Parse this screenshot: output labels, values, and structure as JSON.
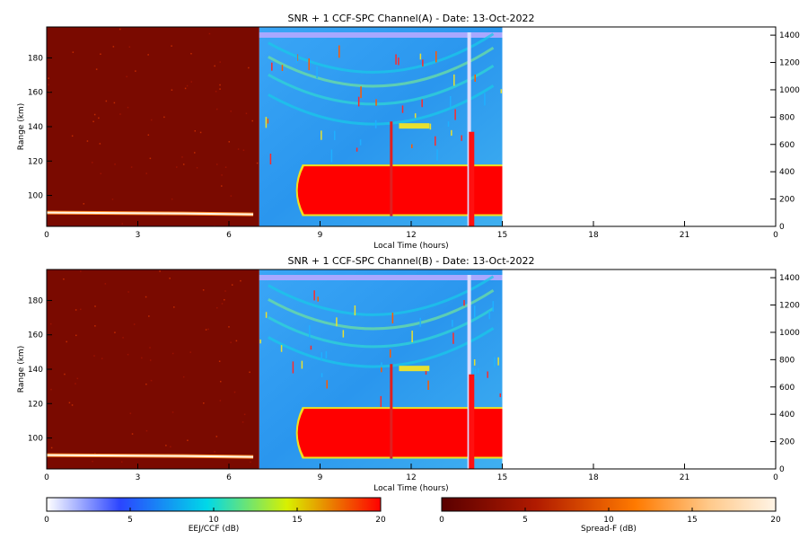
{
  "chart_data": [
    {
      "type": "heatmap",
      "title": "SNR + 1 CCF-SPC Channel(A) - Date: 13-Oct-2022",
      "xlabel": "Local Time (hours)",
      "ylabel": "Range (km)",
      "xlim": [
        0,
        24
      ],
      "ylim": [
        82,
        198
      ],
      "xticks": [
        "0",
        "3",
        "6",
        "9",
        "12",
        "15",
        "18",
        "21",
        "0"
      ],
      "yticks": [
        100,
        120,
        140,
        160,
        180
      ],
      "y2ticks": [
        0,
        200,
        400,
        600,
        800,
        1000,
        1200,
        1400
      ],
      "y2lim": [
        0,
        1460
      ],
      "segments": [
        {
          "name": "Spread-F",
          "x": [
            0,
            7
          ],
          "colorbar": "Spread-F (dB)"
        },
        {
          "name": "EEJ/CCF",
          "x": [
            7,
            15
          ],
          "colorbar": "EEJ/CCF (dB)"
        }
      ],
      "features": {
        "spreadf_trace_range_km": 89,
        "eej_saturated_range_km": [
          88,
          118
        ],
        "noise_fill_x": [
          7,
          15
        ]
      }
    },
    {
      "type": "heatmap",
      "title": "SNR + 1 CCF-SPC Channel(B) - Date: 13-Oct-2022",
      "xlabel": "Local Time (hours)",
      "ylabel": "Range (km)",
      "xlim": [
        0,
        24
      ],
      "ylim": [
        82,
        198
      ],
      "xticks": [
        "0",
        "3",
        "6",
        "9",
        "12",
        "15",
        "18",
        "21",
        "0"
      ],
      "yticks": [
        100,
        120,
        140,
        160,
        180
      ],
      "y2ticks": [
        0,
        200,
        400,
        600,
        800,
        1000,
        1200,
        1400
      ],
      "y2lim": [
        0,
        1460
      ],
      "segments": [
        {
          "name": "Spread-F",
          "x": [
            0,
            7
          ],
          "colorbar": "Spread-F (dB)"
        },
        {
          "name": "EEJ/CCF",
          "x": [
            7,
            15
          ],
          "colorbar": "EEJ/CCF (dB)"
        }
      ],
      "features": {
        "spreadf_trace_range_km": 89,
        "eej_saturated_range_km": [
          88,
          118
        ],
        "noise_fill_x": [
          7,
          15
        ]
      }
    }
  ],
  "colorbars": [
    {
      "label": "EEJ/CCF (dB)",
      "ticks": [
        "0",
        "5",
        "10",
        "15",
        "20"
      ],
      "range": [
        0,
        20
      ],
      "colors": [
        "#ffffff",
        "#2b45ff",
        "#00d8e8",
        "#d8f000",
        "#ff0000"
      ]
    },
    {
      "label": "Spread-F (dB)",
      "ticks": [
        "0",
        "5",
        "10",
        "15",
        "20"
      ],
      "range": [
        0,
        20
      ],
      "colors": [
        "#5a0000",
        "#b01a00",
        "#ff7a00",
        "#ffc98a",
        "#fff4e6"
      ]
    }
  ],
  "colors": {
    "spreadf_background": "#7a0a00",
    "eej_background": "#2f9cf2",
    "eej_saturated": "#ff0000",
    "noise_band": "#a8a8ff"
  }
}
